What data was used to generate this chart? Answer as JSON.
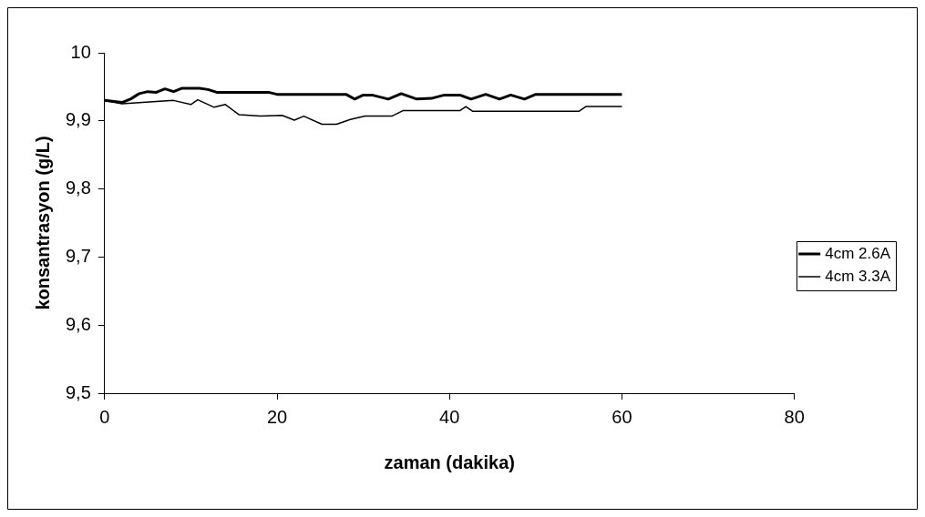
{
  "chart_data": {
    "type": "line",
    "xlabel": "zaman (dakika)",
    "ylabel": "konsantrasyon (g/L)",
    "xlim": [
      0,
      80
    ],
    "xticks": [
      0,
      20,
      40,
      60,
      80
    ],
    "ylim": [
      9.5,
      10
    ],
    "yticks": [
      {
        "value": 9.5,
        "label": "9,5"
      },
      {
        "value": 9.6,
        "label": "9,6"
      },
      {
        "value": 9.7,
        "label": "9,7"
      },
      {
        "value": 9.8,
        "label": "9,8"
      },
      {
        "value": 9.9,
        "label": "9,9"
      },
      {
        "value": 10,
        "label": "10"
      }
    ],
    "grid": false,
    "legend": "right",
    "marker": "none",
    "line_style": "solid",
    "series": [
      {
        "name": "4cm 2.6A",
        "color": "#000000",
        "x": [
          0,
          2,
          3,
          4,
          5,
          6,
          7,
          8,
          9,
          10,
          11,
          12,
          13,
          14,
          19,
          20,
          28,
          29,
          30,
          31,
          32.9,
          34.4,
          36.2,
          37.9,
          39.4,
          41.2,
          42.5,
          44.2,
          45.8,
          47.1,
          48.7,
          50,
          60
        ],
        "values": [
          9.93,
          9.927,
          9.932,
          9.94,
          9.943,
          9.942,
          9.947,
          9.943,
          9.948,
          9.948,
          9.948,
          9.946,
          9.942,
          9.942,
          9.942,
          9.939,
          9.939,
          9.932,
          9.938,
          9.938,
          9.932,
          9.94,
          9.932,
          9.933,
          9.938,
          9.938,
          9.932,
          9.939,
          9.932,
          9.938,
          9.932,
          9.939,
          9.939
        ]
      },
      {
        "name": "4cm 3.3A",
        "color": "#000000",
        "x": [
          0,
          2,
          8,
          10,
          10.8,
          12.7,
          14,
          15.6,
          18.1,
          20.6,
          22,
          23.1,
          25.2,
          26.9,
          28.5,
          30.2,
          33.3,
          34.6,
          41.2,
          41.9,
          42.7,
          55,
          55.8,
          60
        ],
        "values": [
          9.93,
          9.925,
          9.93,
          9.924,
          9.931,
          9.92,
          9.924,
          9.909,
          9.907,
          9.908,
          9.901,
          9.907,
          9.895,
          9.895,
          9.902,
          9.907,
          9.907,
          9.915,
          9.915,
          9.921,
          9.914,
          9.914,
          9.921,
          9.921
        ]
      }
    ]
  }
}
